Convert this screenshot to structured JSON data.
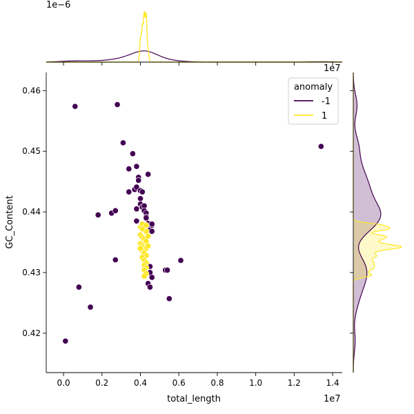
{
  "chart_data": {
    "type": "scatter",
    "title": "",
    "xlabel": "total_length",
    "ylabel": "GC_Content",
    "x_offset_label": "1e7",
    "y_offset_label": "1e7",
    "marg_x_offset_label": "1e−6",
    "x_scale_note": "values x 1e7",
    "xlim": [
      -0.09,
      1.45
    ],
    "ylim": [
      0.4135,
      0.463
    ],
    "x_ticks": [
      0.0,
      0.2,
      0.4,
      0.6,
      0.8,
      1.0,
      1.2,
      1.4
    ],
    "x_tick_labels": [
      "0.0",
      "0.2",
      "0.4",
      "0.6",
      "0.8",
      "1.0",
      "1.2",
      "1.4"
    ],
    "y_ticks": [
      0.42,
      0.43,
      0.44,
      0.45,
      0.46
    ],
    "y_tick_labels": [
      "0.42",
      "0.43",
      "0.44",
      "0.45",
      "0.46"
    ],
    "grid": false,
    "legend": {
      "title": "anomaly",
      "placement": "top-right",
      "entries": [
        {
          "label": "-1",
          "color": "#440154"
        },
        {
          "label": "1",
          "color": "#fde725"
        }
      ]
    },
    "series": [
      {
        "legend_label": "-1",
        "color": "#440154",
        "points": [
          [
            0.01,
            0.4187
          ],
          [
            0.06,
            0.4574
          ],
          [
            0.08,
            0.4276
          ],
          [
            0.14,
            0.4243
          ],
          [
            0.18,
            0.4395
          ],
          [
            0.25,
            0.4398
          ],
          [
            0.27,
            0.4402
          ],
          [
            0.27,
            0.4321
          ],
          [
            0.28,
            0.4577
          ],
          [
            0.31,
            0.4514
          ],
          [
            0.34,
            0.4471
          ],
          [
            0.34,
            0.4433
          ],
          [
            0.36,
            0.4496
          ],
          [
            0.37,
            0.4437
          ],
          [
            0.38,
            0.4475
          ],
          [
            0.38,
            0.4441
          ],
          [
            0.38,
            0.4405
          ],
          [
            0.39,
            0.4457
          ],
          [
            0.39,
            0.4452
          ],
          [
            0.4,
            0.4435
          ],
          [
            0.4,
            0.4422
          ],
          [
            0.4,
            0.4413
          ],
          [
            0.41,
            0.4408
          ],
          [
            0.41,
            0.4433
          ],
          [
            0.42,
            0.441
          ],
          [
            0.42,
            0.4402
          ],
          [
            0.43,
            0.4398
          ],
          [
            0.43,
            0.4392
          ],
          [
            0.44,
            0.4462
          ],
          [
            0.44,
            0.4381
          ],
          [
            0.44,
            0.4375
          ],
          [
            0.45,
            0.437
          ],
          [
            0.46,
            0.4378
          ],
          [
            0.46,
            0.4368
          ],
          [
            0.46,
            0.438
          ],
          [
            0.45,
            0.43
          ],
          [
            0.44,
            0.4282
          ],
          [
            0.45,
            0.4276
          ],
          [
            0.46,
            0.4292
          ],
          [
            0.45,
            0.431
          ],
          [
            0.53,
            0.4304
          ],
          [
            0.54,
            0.4304
          ],
          [
            0.55,
            0.4257
          ],
          [
            0.61,
            0.432
          ],
          [
            0.43,
            0.439
          ],
          [
            0.38,
            0.4385
          ],
          [
            1.34,
            0.4508
          ]
        ]
      },
      {
        "legend_label": "1",
        "color": "#fde725",
        "points": [
          [
            0.4,
            0.4375
          ],
          [
            0.41,
            0.438
          ],
          [
            0.42,
            0.4372
          ],
          [
            0.43,
            0.4368
          ],
          [
            0.4,
            0.4362
          ],
          [
            0.41,
            0.4358
          ],
          [
            0.42,
            0.4355
          ],
          [
            0.43,
            0.4352
          ],
          [
            0.4,
            0.4348
          ],
          [
            0.41,
            0.4345
          ],
          [
            0.42,
            0.4342
          ],
          [
            0.43,
            0.434
          ],
          [
            0.41,
            0.4336
          ],
          [
            0.42,
            0.4332
          ],
          [
            0.43,
            0.4328
          ],
          [
            0.41,
            0.4325
          ],
          [
            0.42,
            0.432
          ],
          [
            0.43,
            0.4316
          ],
          [
            0.42,
            0.4312
          ],
          [
            0.43,
            0.4308
          ],
          [
            0.42,
            0.4304
          ],
          [
            0.43,
            0.4298
          ],
          [
            0.42,
            0.4294
          ],
          [
            0.41,
            0.4372
          ],
          [
            0.43,
            0.4378
          ],
          [
            0.4,
            0.434
          ],
          [
            0.44,
            0.4344
          ],
          [
            0.44,
            0.436
          ]
        ]
      }
    ]
  }
}
